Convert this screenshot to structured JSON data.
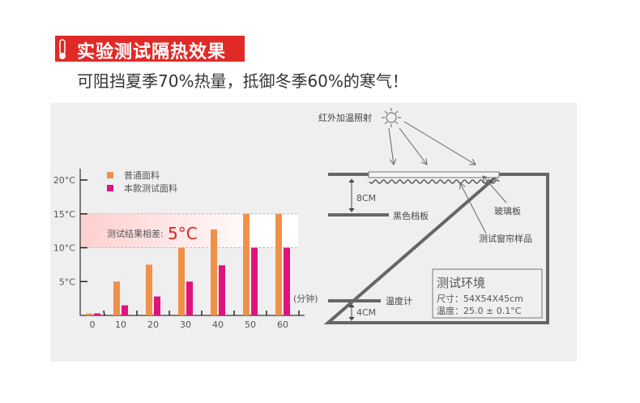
{
  "header": {
    "title": "实验测试隔热效果",
    "icon": "thermometer-icon",
    "subtitle": "可阻挡夏季70%热量，抵御冬季60%的寒气！",
    "accent": "#e02a27"
  },
  "chart_data": {
    "type": "bar",
    "categories": [
      "0",
      "10",
      "20",
      "30",
      "40",
      "50",
      "60"
    ],
    "series": [
      {
        "name": "普通面料",
        "color": "#f0914a",
        "values": [
          0.3,
          5,
          7.5,
          10,
          12.7,
          15,
          15
        ]
      },
      {
        "name": "本款测试面料",
        "color": "#e0127f",
        "values": [
          0.3,
          1.5,
          2.8,
          5,
          7.4,
          10,
          10
        ]
      }
    ],
    "yticks": [
      "5°C",
      "10°C",
      "15°C",
      "20°C"
    ],
    "ylim": [
      0,
      20
    ],
    "xlabel": "(分钟)",
    "legend": "top-left",
    "band": {
      "range": [
        10,
        15
      ],
      "label": "测试结果相差:",
      "value": "5°C"
    }
  },
  "diagram": {
    "light_label": "红外加温照射",
    "glass_label": "玻璃板",
    "sample_label": "测试窗帘样品",
    "board_label": "黑色档板",
    "board_gap": "8CM",
    "thermo_label": "温度计",
    "thermo_gap": "4CM",
    "env": {
      "title": "测试环境",
      "size": "尺寸：54X54X45cm",
      "temp": "温度：25.0 ± 0.1°C"
    }
  }
}
